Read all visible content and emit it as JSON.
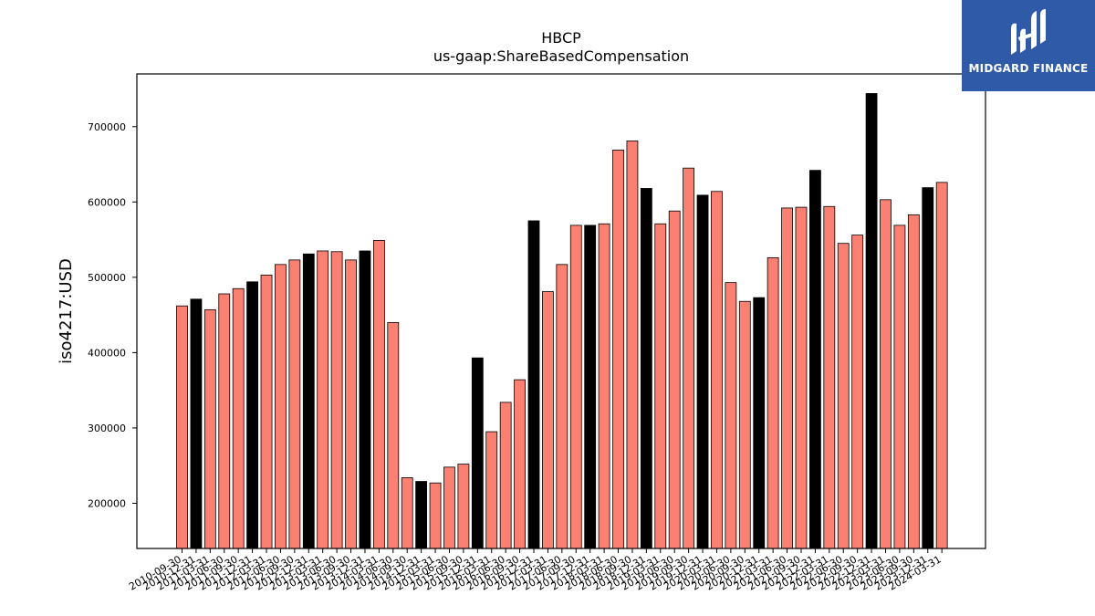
{
  "chart_data": {
    "type": "bar",
    "title": "HBCP",
    "subtitle": "us-gaap:ShareBasedCompensation",
    "ylabel": "iso4217:USD",
    "xlabel": "",
    "ylim": [
      140000,
      770000
    ],
    "yticks": [
      200000,
      300000,
      400000,
      500000,
      600000,
      700000
    ],
    "grid": false,
    "categories": [
      "2010-09-30",
      "2010-12-31",
      "2011-03-31",
      "2011-06-30",
      "2011-09-30",
      "2011-12-31",
      "2012-03-31",
      "2012-06-30",
      "2012-09-30",
      "2012-12-31",
      "2013-03-31",
      "2013-06-30",
      "2013-09-30",
      "2013-12-31",
      "2014-03-31",
      "2014-06-30",
      "2014-09-30",
      "2014-12-31",
      "2015-03-31",
      "2015-06-30",
      "2015-09-30",
      "2015-12-31",
      "2016-03-31",
      "2016-06-30",
      "2016-09-30",
      "2016-12-31",
      "2017-03-31",
      "2017-06-30",
      "2017-09-30",
      "2017-12-31",
      "2018-03-31",
      "2018-06-30",
      "2018-09-30",
      "2018-12-31",
      "2019-03-31",
      "2019-06-30",
      "2019-09-30",
      "2019-12-31",
      "2020-03-31",
      "2020-06-30",
      "2020-09-30",
      "2020-12-31",
      "2021-03-31",
      "2021-06-30",
      "2021-09-30",
      "2021-12-31",
      "2022-03-31",
      "2022-06-30",
      "2022-09-30",
      "2022-12-31",
      "2023-03-31",
      "2023-06-30",
      "2023-09-30",
      "2023-12-31",
      "2024-03-31"
    ],
    "values": [
      462000,
      471000,
      457000,
      478000,
      485000,
      494000,
      503000,
      517000,
      523000,
      531000,
      535000,
      534000,
      523000,
      535000,
      549000,
      440000,
      234000,
      229000,
      227000,
      248000,
      252000,
      393000,
      295000,
      334000,
      364000,
      575000,
      481000,
      517000,
      569000,
      569000,
      571000,
      669000,
      681000,
      618000,
      571000,
      588000,
      645000,
      609000,
      614000,
      493000,
      468000,
      473000,
      526000,
      592000,
      593000,
      642000,
      594000,
      545000,
      556000,
      744000,
      603000,
      569000,
      583000,
      619000,
      626000
    ],
    "fiscal_year_end": [
      false,
      true,
      false,
      false,
      false,
      true,
      false,
      false,
      false,
      true,
      false,
      false,
      false,
      true,
      false,
      false,
      false,
      true,
      false,
      false,
      false,
      true,
      false,
      false,
      false,
      true,
      false,
      false,
      false,
      true,
      false,
      false,
      false,
      true,
      false,
      false,
      false,
      true,
      false,
      false,
      false,
      true,
      false,
      false,
      false,
      true,
      false,
      false,
      false,
      true,
      false,
      false,
      false,
      true,
      false
    ],
    "colors": {
      "quarter": "#fa8072",
      "year_end": "#000000",
      "edge": "#000000"
    }
  },
  "brand": {
    "name": "MIDGARD FINANCE",
    "background": "#2f5aa8",
    "foreground": "#ffffff"
  }
}
